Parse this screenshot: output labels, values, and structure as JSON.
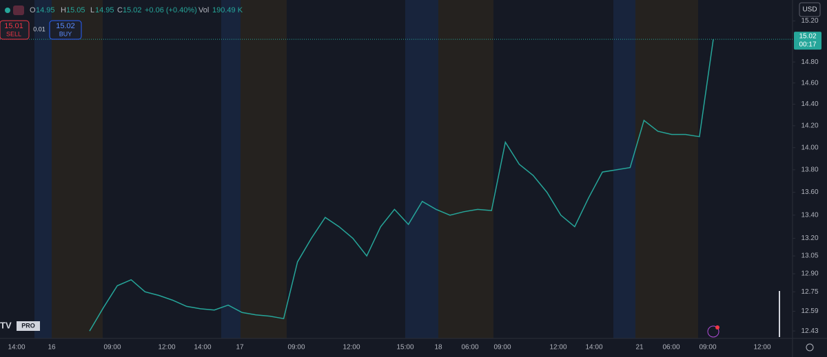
{
  "chart_data": {
    "type": "line",
    "log_scale": true,
    "header": {
      "o_label": "O",
      "open": "14.95",
      "h_label": "H",
      "high": "15.05",
      "l_label": "L",
      "low": "14.95",
      "c_label": "C",
      "close": "15.02",
      "change": "+0.06 (+0.40%)",
      "vol_label": "Vol",
      "volume": "190.49 K"
    },
    "trade": {
      "sell_price": "15.01",
      "sell_label": "SELL",
      "spread": "0.01",
      "buy_price": "15.02",
      "buy_label": "BUY"
    },
    "currency": "USD",
    "logo": "PRO",
    "last_price": 15.02,
    "countdown": "00:17",
    "xtick_labels": [
      "14:00",
      "16",
      "09:00",
      "12:00",
      "14:00",
      "17",
      "09:00",
      "12:00",
      "15:00",
      "18",
      "06:00",
      "09:00",
      "12:00",
      "14:00",
      "21",
      "06:00",
      "09:00",
      "12:00"
    ],
    "series": [
      {
        "name": "Close",
        "color": "#26a69a",
        "values": [
          12.43,
          12.62,
          12.8,
          12.85,
          12.75,
          12.72,
          12.68,
          12.63,
          12.61,
          12.6,
          12.64,
          12.58,
          12.56,
          12.55,
          12.53,
          13.0,
          13.2,
          13.38,
          13.3,
          13.2,
          13.05,
          13.3,
          13.45,
          13.32,
          13.52,
          13.45,
          13.4,
          13.43,
          13.45,
          13.44,
          14.05,
          13.85,
          13.75,
          13.6,
          13.4,
          13.3,
          13.55,
          13.78,
          13.8,
          13.82,
          14.25,
          14.15,
          14.12,
          14.12,
          14.1,
          15.02
        ]
      }
    ],
    "ylim": [
      12.37,
      15.38
    ],
    "yticks": [
      {
        "value": 12.43,
        "label": "12.43"
      },
      {
        "value": 12.59,
        "label": "12.59"
      },
      {
        "value": 12.75,
        "label": "12.75"
      },
      {
        "value": 12.9,
        "label": "12.90"
      },
      {
        "value": 13.05,
        "label": "13.05"
      },
      {
        "value": 13.2,
        "label": "13.20"
      },
      {
        "value": 13.4,
        "label": "13.40"
      },
      {
        "value": 13.6,
        "label": "13.60"
      },
      {
        "value": 13.8,
        "label": "13.80"
      },
      {
        "value": 14,
        "label": "14.00"
      },
      {
        "value": 14.2,
        "label": "14.20"
      },
      {
        "value": 14.4,
        "label": "14.40"
      },
      {
        "value": 14.6,
        "label": "14.60"
      },
      {
        "value": 14.8,
        "label": "14.80"
      },
      {
        "value": 15.2,
        "label": "15.20"
      }
    ]
  }
}
